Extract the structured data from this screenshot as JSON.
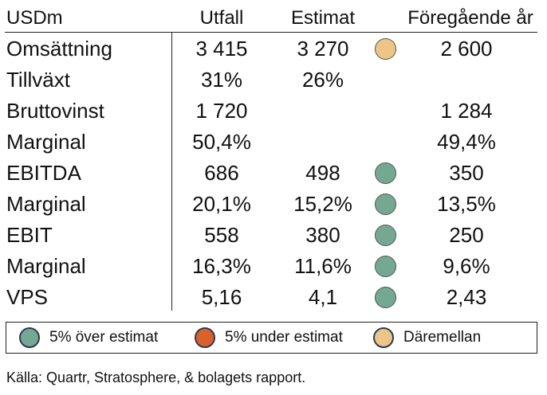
{
  "header": {
    "unit": "USDm",
    "col_utfall": "Utfall",
    "col_estimat": "Estimat",
    "col_prev": "Föregående år"
  },
  "rows": [
    {
      "label": "Omsättning",
      "utfall": "3 415",
      "estimat": "3 270",
      "indicator": "between",
      "prev": "2 600"
    },
    {
      "label": "Tillväxt",
      "utfall": "31%",
      "estimat": "26%",
      "indicator": "",
      "prev": ""
    },
    {
      "label": "Bruttovinst",
      "utfall": "1 720",
      "estimat": "",
      "indicator": "",
      "prev": "1 284"
    },
    {
      "label": "Marginal",
      "utfall": "50,4%",
      "estimat": "",
      "indicator": "",
      "prev": "49,4%"
    },
    {
      "label": "EBITDA",
      "utfall": "686",
      "estimat": "498",
      "indicator": "above",
      "prev": "350"
    },
    {
      "label": "Marginal",
      "utfall": "20,1%",
      "estimat": "15,2%",
      "indicator": "above",
      "prev": "13,5%"
    },
    {
      "label": "EBIT",
      "utfall": "558",
      "estimat": "380",
      "indicator": "above",
      "prev": "250"
    },
    {
      "label": "Marginal",
      "utfall": "16,3%",
      "estimat": "11,6%",
      "indicator": "above",
      "prev": "9,6%"
    },
    {
      "label": "VPS",
      "utfall": "5,16",
      "estimat": "4,1",
      "indicator": "above",
      "prev": "2,43"
    }
  ],
  "legend": {
    "above_label": "5% över estimat",
    "below_label": "5% under estimat",
    "between_label": "Däremellan"
  },
  "colors": {
    "above": "#74a893",
    "below": "#d9622b",
    "between": "#ecc587"
  },
  "source": "Källa: Quartr, Stratosphere, & bolagets rapport."
}
